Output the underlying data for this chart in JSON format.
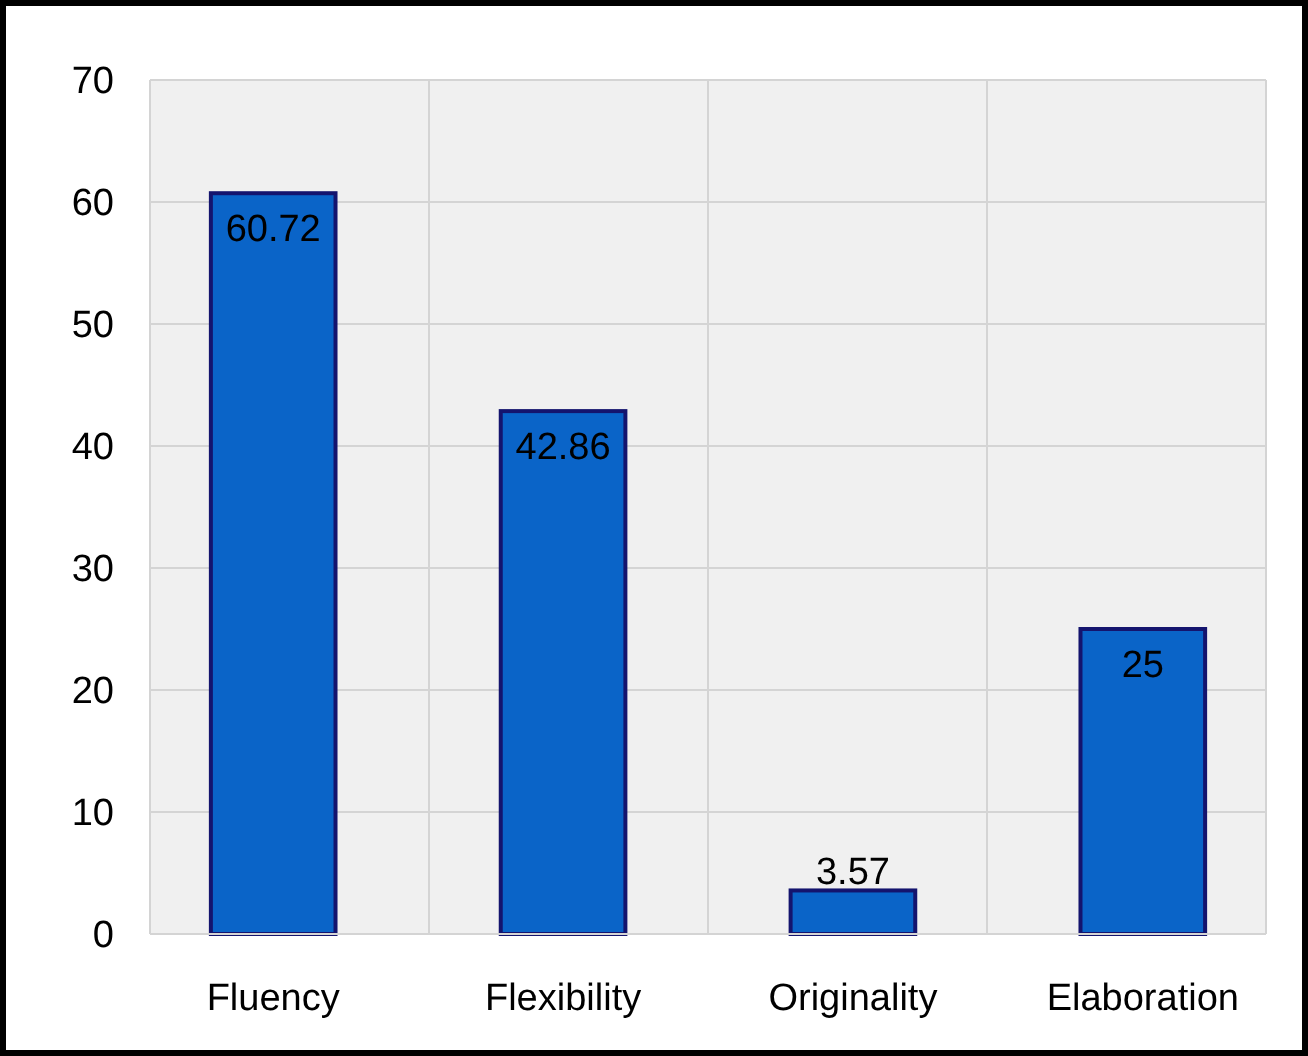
{
  "chart_data": {
    "type": "bar",
    "categories": [
      "Fluency",
      "Flexibility",
      "Originality",
      "Elaboration"
    ],
    "values": [
      60.72,
      42.86,
      3.57,
      25
    ],
    "color": "#0a64c8",
    "ylim": [
      0,
      70
    ],
    "yticks": [
      0,
      10,
      20,
      30,
      40,
      50,
      60,
      70
    ],
    "grid": true,
    "data_labels": true
  }
}
